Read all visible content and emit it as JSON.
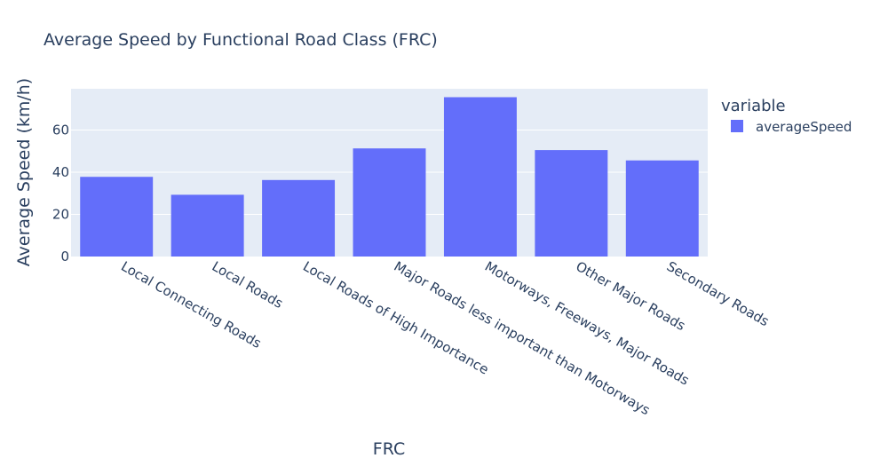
{
  "chart_data": {
    "type": "bar",
    "title": "Average Speed by Functional Road Class (FRC)",
    "xlabel": "FRC",
    "ylabel": "Average Speed (km/h)",
    "categories": [
      "Local Connecting Roads",
      "Local Roads",
      "Local Roads of High Importance",
      "Major Roads less important than Motorways",
      "Motorways, Freeways, Major Roads",
      "Other Major Roads",
      "Secondary Roads"
    ],
    "series": [
      {
        "name": "averageSpeed",
        "values": [
          37.8,
          29.3,
          36.3,
          51.3,
          75.6,
          50.5,
          45.6
        ]
      }
    ],
    "ylim": [
      0,
      79.6
    ],
    "yticks": [
      0,
      20,
      40,
      60
    ],
    "grid": true,
    "legend": {
      "title": "variable",
      "position": "top-right"
    },
    "colors": {
      "bar": "#636efa",
      "plot_bg": "#e5ecf6",
      "grid": "#ffffff",
      "text": "#2a3f5f"
    }
  }
}
